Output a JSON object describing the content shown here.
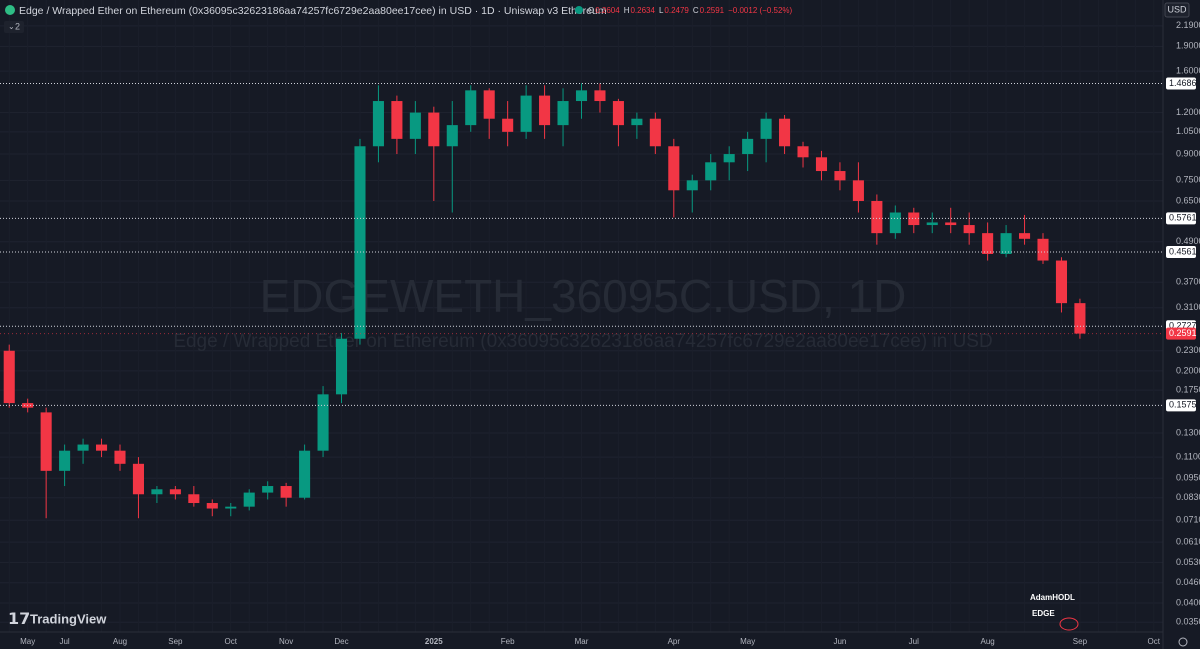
{
  "chart_data": {
    "type": "candlestick",
    "title": "Edge / Wrapped Ether on Ethereum (0x36095c32623186aa74257fc6729e2aa80ee17cee) in USD · 1D · Uniswap v3 Ethereum",
    "watermark": "EDGEWETH_36095C.USD, 1D",
    "watermark_subtitle": "Edge / Wrapped Ether on Ethereum (0x36095c32623186aa74257fc6729e2aa80ee17cee) in USD",
    "legend": {
      "o_label": "O",
      "o": 0.2604,
      "h_label": "H",
      "h": 0.2634,
      "l_label": "L",
      "l": 0.2479,
      "c_label": "C",
      "c": 0.2591,
      "change": "−0.0012 (−0.52%)"
    },
    "indicator_count": "2",
    "currency": "USD",
    "brand": "TradingView",
    "author": "AdamHODL",
    "ticker_badge": "EDGE",
    "up_color": "#089981",
    "down_color": "#f23645",
    "log_scale": true,
    "grid": true,
    "categories": [
      null,
      "May",
      null,
      "Jul",
      null,
      null,
      "Aug",
      null,
      null,
      "Sep",
      null,
      null,
      "Oct",
      null,
      null,
      "Nov",
      null,
      null,
      "Dec",
      null,
      null,
      null,
      null,
      "2025",
      null,
      null,
      null,
      "Feb",
      null,
      null,
      null,
      "Mar",
      null,
      null,
      null,
      null,
      "Apr",
      null,
      null,
      null,
      "May",
      null,
      null,
      null,
      null,
      "Jun",
      null,
      null,
      null,
      "Jul",
      null,
      null,
      null,
      "Aug",
      null,
      null,
      null,
      null,
      "Sep",
      null,
      null,
      null,
      "Oct"
    ],
    "open": [
      0.23,
      0.16,
      0.15,
      0.1,
      0.115,
      0.12,
      0.115,
      0.105,
      0.085,
      0.088,
      0.085,
      0.08,
      0.077,
      0.078,
      0.086,
      0.09,
      0.083,
      0.115,
      0.17,
      0.25,
      0.95,
      1.3,
      1.0,
      1.2,
      0.95,
      1.1,
      1.4,
      1.15,
      1.05,
      1.35,
      1.1,
      1.3,
      1.4,
      1.3,
      1.1,
      1.15,
      0.95,
      0.7,
      0.75,
      0.85,
      0.9,
      1.0,
      1.15,
      0.95,
      0.88,
      0.8,
      0.75,
      0.65,
      0.52,
      0.6,
      0.55,
      0.56,
      0.55,
      0.52,
      0.45,
      0.52,
      0.5,
      0.43,
      0.32,
      null,
      null,
      null,
      null
    ],
    "high": [
      0.24,
      0.165,
      0.155,
      0.12,
      0.125,
      0.125,
      0.12,
      0.11,
      0.09,
      0.09,
      0.09,
      0.082,
      0.08,
      0.088,
      0.093,
      0.092,
      0.12,
      0.18,
      0.26,
      1.0,
      1.45,
      1.35,
      1.3,
      1.25,
      1.3,
      1.45,
      1.42,
      1.3,
      1.45,
      1.45,
      1.42,
      1.47,
      1.47,
      1.32,
      1.2,
      1.2,
      1.0,
      0.78,
      0.9,
      0.95,
      1.05,
      1.2,
      1.18,
      0.98,
      0.92,
      0.85,
      0.85,
      0.68,
      0.63,
      0.62,
      0.6,
      0.62,
      0.6,
      0.56,
      0.55,
      0.59,
      0.52,
      0.44,
      0.33,
      null,
      null,
      null,
      null
    ],
    "low": [
      0.155,
      0.15,
      0.072,
      0.09,
      0.105,
      0.11,
      0.1,
      0.072,
      0.08,
      0.082,
      0.078,
      0.073,
      0.073,
      0.076,
      0.082,
      0.078,
      0.082,
      0.11,
      0.16,
      0.24,
      0.85,
      0.9,
      0.9,
      0.65,
      0.6,
      1.05,
      1.0,
      0.95,
      1.0,
      1.0,
      0.95,
      1.15,
      1.2,
      0.95,
      1.0,
      0.9,
      0.58,
      0.6,
      0.7,
      0.75,
      0.8,
      0.85,
      0.9,
      0.82,
      0.75,
      0.7,
      0.6,
      0.48,
      0.5,
      0.52,
      0.52,
      0.52,
      0.48,
      0.43,
      0.44,
      0.48,
      0.42,
      0.3,
      0.25,
      null,
      null,
      null,
      null
    ],
    "close": [
      0.16,
      0.155,
      0.1,
      0.115,
      0.12,
      0.115,
      0.105,
      0.085,
      0.088,
      0.085,
      0.08,
      0.077,
      0.078,
      0.086,
      0.09,
      0.083,
      0.115,
      0.17,
      0.25,
      0.95,
      1.3,
      1.0,
      1.2,
      0.95,
      1.1,
      1.4,
      1.15,
      1.05,
      1.35,
      1.1,
      1.3,
      1.4,
      1.3,
      1.1,
      1.15,
      0.95,
      0.7,
      0.75,
      0.85,
      0.9,
      1.0,
      1.15,
      0.95,
      0.88,
      0.8,
      0.75,
      0.65,
      0.52,
      0.6,
      0.55,
      0.56,
      0.55,
      0.52,
      0.45,
      0.52,
      0.5,
      0.43,
      0.32,
      0.2591,
      null,
      null,
      null,
      null
    ],
    "ylim": [
      0.0327,
      2.62
    ],
    "yticks": [
      {
        "value": 2.19,
        "label": "2.1900"
      },
      {
        "value": 1.9,
        "label": "1.9000"
      },
      {
        "value": 1.6,
        "label": "1.6000"
      },
      {
        "value": 1.2,
        "label": "1.2000"
      },
      {
        "value": 1.05,
        "label": "1.0500"
      },
      {
        "value": 0.9,
        "label": "0.9000"
      },
      {
        "value": 0.75,
        "label": "0.7500"
      },
      {
        "value": 0.65,
        "label": "0.6500"
      },
      {
        "value": 0.49,
        "label": "0.4900"
      },
      {
        "value": 0.37,
        "label": "0.3700"
      },
      {
        "value": 0.31,
        "label": "0.3100"
      },
      {
        "value": 0.23,
        "label": "0.2300"
      },
      {
        "value": 0.2,
        "label": "0.2000"
      },
      {
        "value": 0.175,
        "label": "0.1750"
      },
      {
        "value": 0.13,
        "label": "0.1300"
      },
      {
        "value": 0.11,
        "label": "0.1100"
      },
      {
        "value": 0.095,
        "label": "0.0950"
      },
      {
        "value": 0.083,
        "label": "0.0830"
      },
      {
        "value": 0.071,
        "label": "0.0710"
      },
      {
        "value": 0.061,
        "label": "0.0610"
      },
      {
        "value": 0.053,
        "label": "0.0530"
      },
      {
        "value": 0.046,
        "label": "0.0460"
      },
      {
        "value": 0.04,
        "label": "0.0400"
      },
      {
        "value": 0.035,
        "label": "0.0350"
      }
    ],
    "price_lines": [
      1.4686,
      0.5761,
      0.4561,
      0.2727,
      0.1575
    ],
    "last_price": 0.2591
  }
}
